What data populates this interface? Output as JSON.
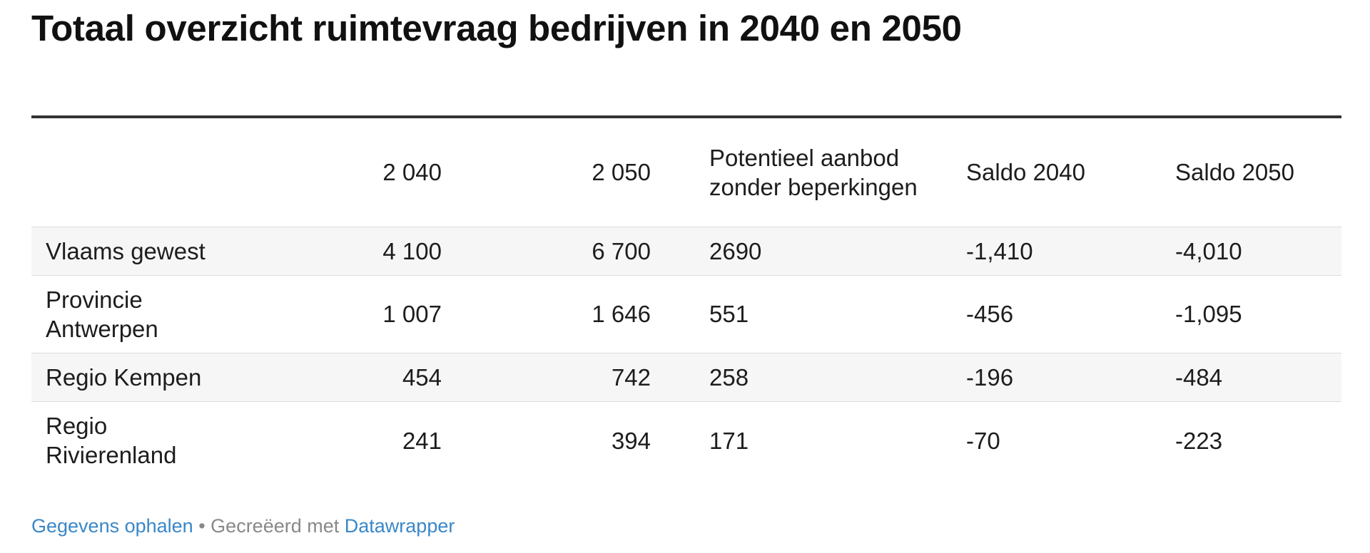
{
  "chart_data": {
    "type": "table",
    "title": "Totaal overzicht ruimtevraag bedrijven in 2040 en 2050",
    "columns": [
      "",
      "2 040",
      "2 050",
      "Potentieel aanbod zonder beperkingen",
      "Saldo 2040",
      "Saldo 2050"
    ],
    "rows": [
      [
        "Vlaams gewest",
        "4 100",
        "6 700",
        "2690",
        "-1,410",
        "-4,010"
      ],
      [
        "Provincie Antwerpen",
        "1 007",
        "1 646",
        "551",
        "-456",
        "-1,095"
      ],
      [
        "Regio Kempen",
        "454",
        "742",
        "258",
        "-196",
        "-484"
      ],
      [
        "Regio Rivierenland",
        "241",
        "394",
        "171",
        "-70",
        "-223"
      ]
    ]
  },
  "footer": {
    "data_link": "Gegevens ophalen",
    "separator": "•",
    "created_with": "Gecreëerd met",
    "tool_link": "Datawrapper"
  },
  "colors": {
    "header_rule": "#333333",
    "row_shade": "#f6f6f6",
    "link": "#3a87c8",
    "footer_text": "#888888"
  }
}
